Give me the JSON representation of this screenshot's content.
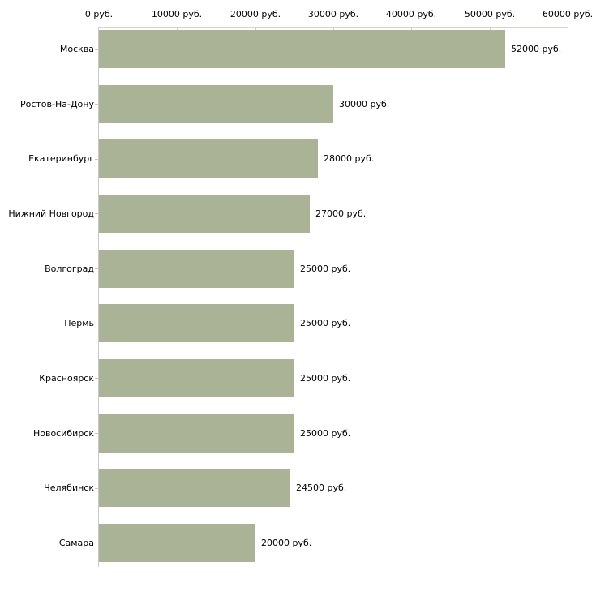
{
  "chart_data": {
    "type": "bar",
    "orientation": "horizontal",
    "title": "",
    "xlabel": "",
    "ylabel": "",
    "xlim": [
      0,
      60000
    ],
    "grid": false,
    "legend": false,
    "x_tick_values": [
      0,
      10000,
      20000,
      30000,
      40000,
      50000,
      60000
    ],
    "x_tick_labels": [
      "0 руб.",
      "10000 руб.",
      "20000 руб.",
      "30000 руб.",
      "40000 руб.",
      "50000 руб.",
      "60000 руб."
    ],
    "categories": [
      "Москва",
      "Ростов-На-Дону",
      "Екатеринбург",
      "Нижний Новгород",
      "Волгоград",
      "Пермь",
      "Красноярск",
      "Новосибирск",
      "Челябинск",
      "Самара"
    ],
    "values": [
      52000,
      30000,
      28000,
      27000,
      25000,
      25000,
      25000,
      25000,
      24500,
      20000
    ],
    "value_labels": [
      "52000 руб.",
      "30000 руб.",
      "28000 руб.",
      "27000 руб.",
      "25000 руб.",
      "25000 руб.",
      "25000 руб.",
      "25000 руб.",
      "24500 руб.",
      "20000 руб."
    ],
    "colors": {
      "bar": "#abb396",
      "x_axis_line": "#d6d6c6",
      "y_axis_line": "#c9c9c9",
      "x_tick": "#cfcfae",
      "y_tick": "#ddc2c2",
      "text": "#000000",
      "background": "#ffffff"
    }
  }
}
